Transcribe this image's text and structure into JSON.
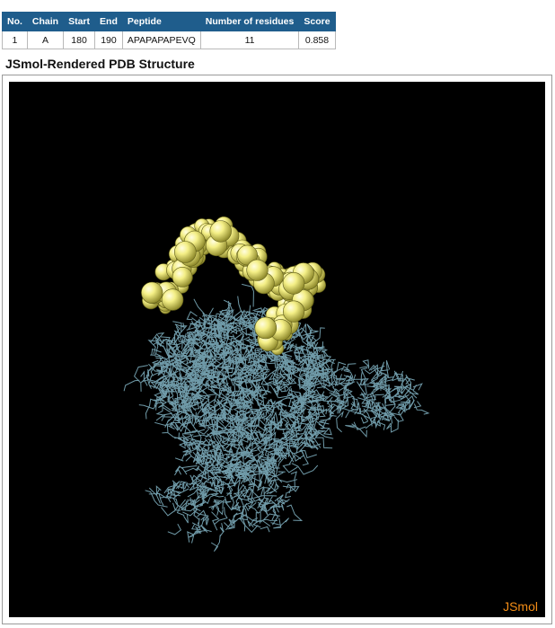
{
  "results_table": {
    "headers": [
      "No.",
      "Chain",
      "Start",
      "End",
      "Peptide",
      "Number of residues",
      "Score"
    ],
    "rows": [
      [
        "1",
        "A",
        "180",
        "190",
        "APAPAPAPEVQ",
        "11",
        "0.858"
      ]
    ]
  },
  "structure": {
    "title": "JSmol-Rendered PDB Structure",
    "viewer_label": "JSmol",
    "colors": {
      "background": "#000000",
      "peptide": "#f2f07a",
      "protein": "#6f9aa8",
      "logo": "#f28c16",
      "table_header": "#1f5d8c"
    }
  }
}
